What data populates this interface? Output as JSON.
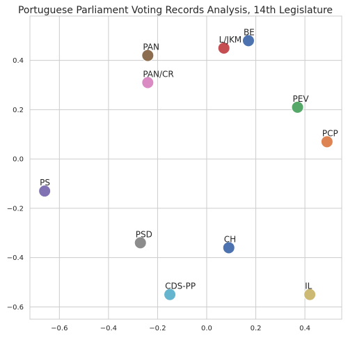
{
  "chart_data": {
    "type": "scatter",
    "title": "Portuguese Parliament Voting Records Analysis, 14th Legislature",
    "xlabel": "",
    "ylabel": "",
    "xlim": [
      -0.72,
      0.55
    ],
    "ylim": [
      -0.65,
      0.58
    ],
    "xticks": [
      -0.6,
      -0.4,
      -0.2,
      0.0,
      0.2,
      0.4
    ],
    "xtick_labels": [
      "−0.6",
      "−0.4",
      "−0.2",
      "0.0",
      "0.2",
      "0.4"
    ],
    "yticks": [
      -0.6,
      -0.4,
      -0.2,
      0.0,
      0.2,
      0.4
    ],
    "ytick_labels": [
      "−0.6",
      "−0.4",
      "−0.2",
      "0.0",
      "0.2",
      "0.4"
    ],
    "grid": true,
    "points": [
      {
        "label": "BE",
        "x": 0.17,
        "y": 0.48,
        "color": "#4c72b0"
      },
      {
        "label": "L/JKM",
        "x": 0.07,
        "y": 0.45,
        "color": "#c44e52"
      },
      {
        "label": "PAN",
        "x": -0.24,
        "y": 0.42,
        "color": "#8c6d4f"
      },
      {
        "label": "PAN/CR",
        "x": -0.24,
        "y": 0.31,
        "color": "#da8bc3"
      },
      {
        "label": "PEV",
        "x": 0.37,
        "y": 0.21,
        "color": "#55a868"
      },
      {
        "label": "PCP",
        "x": 0.49,
        "y": 0.07,
        "color": "#dd8452"
      },
      {
        "label": "PS",
        "x": -0.66,
        "y": -0.13,
        "color": "#8172b3"
      },
      {
        "label": "PSD",
        "x": -0.27,
        "y": -0.34,
        "color": "#8c8c8c"
      },
      {
        "label": "CH",
        "x": 0.09,
        "y": -0.36,
        "color": "#4c72b0"
      },
      {
        "label": "CDS-PP",
        "x": -0.15,
        "y": -0.55,
        "color": "#64b5cd"
      },
      {
        "label": "IL",
        "x": 0.42,
        "y": -0.55,
        "color": "#ccb974"
      }
    ]
  }
}
